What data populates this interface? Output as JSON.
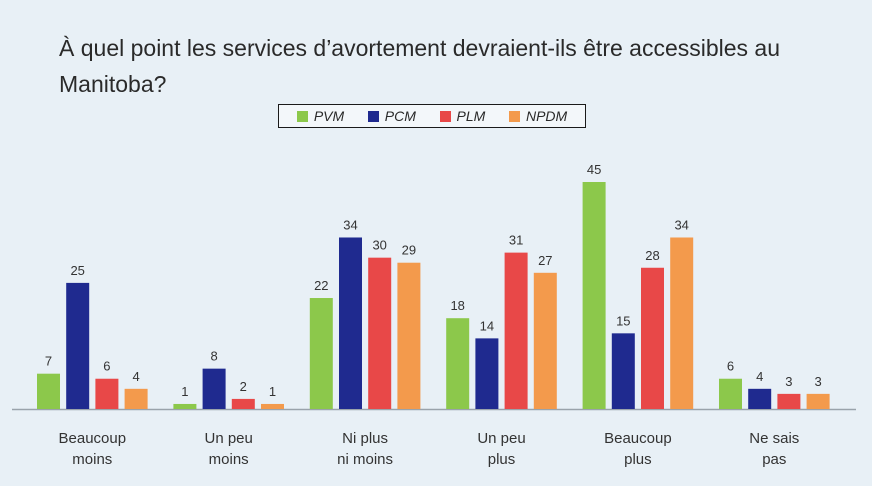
{
  "chart_data": {
    "type": "bar",
    "title": "À quel point les services d’avortement devraient-ils être accessibles au Manitoba?",
    "categories": [
      "Beaucoup moins",
      "Un peu moins",
      "Ni plus ni moins",
      "Un peu plus",
      "Beaucoup plus",
      "Ne sais pas"
    ],
    "category_lines": [
      [
        "Beaucoup",
        "moins"
      ],
      [
        "Un peu",
        "moins"
      ],
      [
        "Ni plus",
        "ni moins"
      ],
      [
        "Un peu",
        "plus"
      ],
      [
        "Beaucoup",
        "plus"
      ],
      [
        "Ne sais",
        "pas"
      ]
    ],
    "series": [
      {
        "name": "PVM",
        "color": "#8cc84b",
        "values": [
          7,
          1,
          22,
          18,
          45,
          6
        ]
      },
      {
        "name": "PCM",
        "color": "#1f2a8f",
        "values": [
          25,
          8,
          34,
          14,
          15,
          4
        ]
      },
      {
        "name": "PLM",
        "color": "#e84848",
        "values": [
          6,
          2,
          30,
          31,
          28,
          3
        ]
      },
      {
        "name": "NPDM",
        "color": "#f39a4c",
        "values": [
          4,
          1,
          29,
          27,
          34,
          3
        ]
      }
    ],
    "ylim": [
      0,
      45
    ],
    "grid": false,
    "data_labels": true,
    "legend_position": "top-center"
  }
}
